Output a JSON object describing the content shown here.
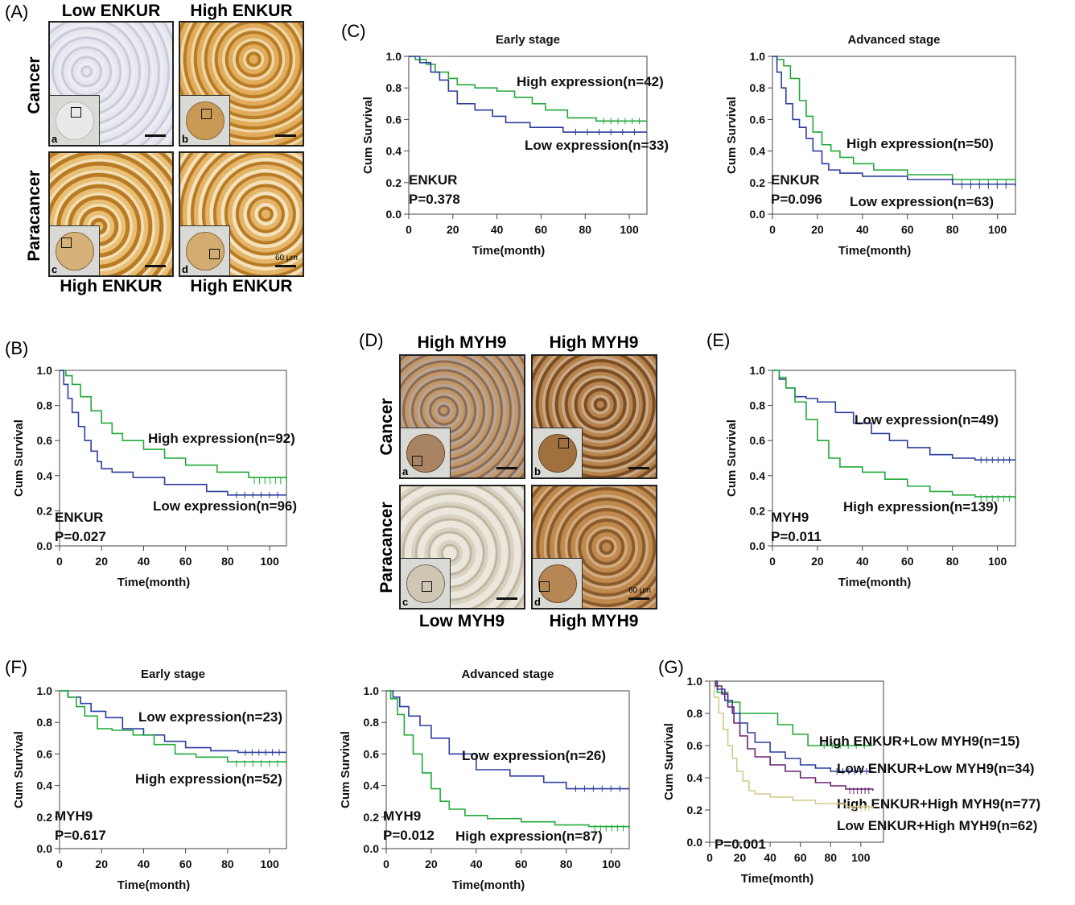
{
  "panel_labels": {
    "A": "(A)",
    "B": "(B)",
    "C": "(C)",
    "D": "(D)",
    "E": "(E)",
    "F": "(F)",
    "G": "(G)"
  },
  "panel_a": {
    "top_left_title": "Low ENKUR",
    "top_right_title": "High ENKUR",
    "bottom_left_title": "High ENKUR",
    "bottom_right_title": "High ENKUR",
    "row1_label": "Cancer",
    "row2_label": "Paracancer",
    "letters": [
      "a",
      "b",
      "c",
      "d"
    ],
    "scale": "60 μm",
    "colors": {
      "low_bg": "#d8d9e3",
      "high_bg": "#d9a04a",
      "stain": "#b87a22"
    }
  },
  "panel_d": {
    "top_left_title": "High MYH9",
    "top_right_title": "High MYH9",
    "bottom_left_title": "Low MYH9",
    "bottom_right_title": "High MYH9",
    "row1_label": "Cancer",
    "row2_label": "Paracancer",
    "letters": [
      "a",
      "b",
      "c",
      "d"
    ],
    "scale": "60 μm",
    "colors": {
      "high_bg": "#b07a45",
      "low_bg": "#d8d2c6",
      "stain": "#8a5a2a"
    }
  },
  "chart_data": [
    {
      "id": "C1",
      "type": "line",
      "title": "Early stage",
      "xlabel": "Time(month)",
      "ylabel": "Cum Survival",
      "xlim": [
        0,
        108
      ],
      "ylim": [
        0,
        1.0
      ],
      "xticks": [
        0,
        20,
        40,
        60,
        80,
        100
      ],
      "yticks": [
        0.0,
        0.2,
        0.4,
        0.6,
        0.8,
        1.0
      ],
      "annotations": [
        "ENKUR",
        "P=0.378"
      ],
      "series": [
        {
          "name": "High expression(n=42)",
          "color": "#22aa3a",
          "x": [
            0,
            3,
            8,
            12,
            18,
            22,
            30,
            40,
            48,
            56,
            62,
            72,
            85,
            108
          ],
          "y": [
            1.0,
            0.98,
            0.95,
            0.9,
            0.86,
            0.82,
            0.8,
            0.78,
            0.74,
            0.7,
            0.66,
            0.61,
            0.59,
            0.59
          ]
        },
        {
          "name": "Low expression(n=33)",
          "color": "#2c3e9f",
          "x": [
            0,
            5,
            10,
            14,
            18,
            22,
            30,
            38,
            44,
            55,
            70,
            108
          ],
          "y": [
            1.0,
            0.96,
            0.9,
            0.85,
            0.78,
            0.7,
            0.66,
            0.62,
            0.58,
            0.55,
            0.52,
            0.52
          ]
        }
      ]
    },
    {
      "id": "C2",
      "type": "line",
      "title": "Advanced stage",
      "xlabel": "Time(month)",
      "ylabel": "Cum Survival",
      "xlim": [
        0,
        108
      ],
      "ylim": [
        0,
        1.0
      ],
      "xticks": [
        0,
        20,
        40,
        60,
        80,
        100
      ],
      "yticks": [
        0.0,
        0.2,
        0.4,
        0.6,
        0.8,
        1.0
      ],
      "annotations": [
        "ENKUR",
        "P=0.096"
      ],
      "series": [
        {
          "name": "High expression(n=50)",
          "color": "#22aa3a",
          "x": [
            0,
            2,
            5,
            8,
            12,
            15,
            18,
            22,
            26,
            30,
            36,
            45,
            60,
            80,
            108
          ],
          "y": [
            1.0,
            0.98,
            0.94,
            0.86,
            0.72,
            0.62,
            0.52,
            0.44,
            0.4,
            0.36,
            0.32,
            0.28,
            0.25,
            0.22,
            0.2
          ]
        },
        {
          "name": "Low expression(n=63)",
          "color": "#2c3e9f",
          "x": [
            0,
            2,
            4,
            6,
            9,
            12,
            15,
            18,
            22,
            25,
            30,
            40,
            60,
            80,
            108
          ],
          "y": [
            1.0,
            0.9,
            0.8,
            0.7,
            0.6,
            0.55,
            0.48,
            0.4,
            0.32,
            0.28,
            0.26,
            0.24,
            0.22,
            0.19,
            0.18
          ]
        }
      ]
    },
    {
      "id": "B",
      "type": "line",
      "title": "",
      "xlabel": "Time(month)",
      "ylabel": "Cum Survival",
      "xlim": [
        0,
        108
      ],
      "ylim": [
        0,
        1.0
      ],
      "xticks": [
        0,
        20,
        40,
        60,
        80,
        100
      ],
      "yticks": [
        0.0,
        0.2,
        0.4,
        0.6,
        0.8,
        1.0
      ],
      "annotations": [
        "ENKUR",
        "P=0.027"
      ],
      "series": [
        {
          "name": "High expression(n=92)",
          "color": "#22aa3a",
          "x": [
            0,
            3,
            6,
            10,
            15,
            20,
            25,
            30,
            40,
            50,
            60,
            75,
            90,
            108
          ],
          "y": [
            1.0,
            0.97,
            0.92,
            0.85,
            0.77,
            0.7,
            0.64,
            0.6,
            0.55,
            0.5,
            0.46,
            0.42,
            0.39,
            0.37
          ]
        },
        {
          "name": "Low expression(n=96)",
          "color": "#2c3e9f",
          "x": [
            0,
            2,
            4,
            6,
            9,
            12,
            15,
            18,
            20,
            25,
            35,
            50,
            70,
            80,
            108
          ],
          "y": [
            1.0,
            0.92,
            0.84,
            0.76,
            0.68,
            0.6,
            0.54,
            0.48,
            0.44,
            0.42,
            0.39,
            0.35,
            0.31,
            0.29,
            0.29
          ]
        }
      ]
    },
    {
      "id": "E",
      "type": "line",
      "title": "",
      "xlabel": "Time(month)",
      "ylabel": "Cum Survival",
      "xlim": [
        0,
        108
      ],
      "ylim": [
        0,
        1.0
      ],
      "xticks": [
        0,
        20,
        40,
        60,
        80,
        100
      ],
      "yticks": [
        0.0,
        0.2,
        0.4,
        0.6,
        0.8,
        1.0
      ],
      "annotations": [
        "MYH9",
        "P=0.011"
      ],
      "series": [
        {
          "name": "Low expression(n=49)",
          "color": "#2c3e9f",
          "x": [
            0,
            3,
            6,
            10,
            15,
            20,
            28,
            36,
            44,
            52,
            60,
            70,
            80,
            90,
            108
          ],
          "y": [
            1.0,
            0.95,
            0.9,
            0.85,
            0.84,
            0.82,
            0.76,
            0.7,
            0.64,
            0.6,
            0.56,
            0.52,
            0.5,
            0.49,
            0.49
          ]
        },
        {
          "name": "High expression(n=139)",
          "color": "#22aa3a",
          "x": [
            0,
            3,
            6,
            10,
            15,
            20,
            25,
            30,
            40,
            50,
            60,
            70,
            80,
            90,
            108
          ],
          "y": [
            1.0,
            0.96,
            0.9,
            0.82,
            0.72,
            0.6,
            0.5,
            0.45,
            0.42,
            0.38,
            0.34,
            0.31,
            0.29,
            0.28,
            0.27
          ]
        }
      ]
    },
    {
      "id": "F1",
      "type": "line",
      "title": "Early stage",
      "xlabel": "Time(month)",
      "ylabel": "Cum Survival",
      "xlim": [
        0,
        108
      ],
      "ylim": [
        0,
        1.0
      ],
      "xticks": [
        0,
        20,
        40,
        60,
        80,
        100
      ],
      "yticks": [
        0.0,
        0.2,
        0.4,
        0.6,
        0.8,
        1.0
      ],
      "annotations": [
        "MYH9",
        "P=0.617"
      ],
      "series": [
        {
          "name": "Low expression(n=23)",
          "color": "#2c3e9f",
          "x": [
            0,
            4,
            10,
            15,
            22,
            30,
            40,
            50,
            60,
            72,
            85,
            108
          ],
          "y": [
            1.0,
            0.96,
            0.92,
            0.87,
            0.83,
            0.76,
            0.72,
            0.68,
            0.64,
            0.62,
            0.61,
            0.61
          ]
        },
        {
          "name": "High expression(n=52)",
          "color": "#22aa3a",
          "x": [
            0,
            4,
            8,
            12,
            18,
            25,
            35,
            45,
            55,
            65,
            80,
            108
          ],
          "y": [
            1.0,
            0.96,
            0.9,
            0.84,
            0.76,
            0.75,
            0.72,
            0.66,
            0.6,
            0.58,
            0.55,
            0.54
          ]
        }
      ]
    },
    {
      "id": "F2",
      "type": "line",
      "title": "Advanced stage",
      "xlabel": "Time(month)",
      "ylabel": "Cum Survival",
      "xlim": [
        0,
        108
      ],
      "ylim": [
        0,
        1.0
      ],
      "xticks": [
        0,
        20,
        40,
        60,
        80,
        100
      ],
      "yticks": [
        0.0,
        0.2,
        0.4,
        0.6,
        0.8,
        1.0
      ],
      "annotations": [
        "MYH9",
        "P=0.012"
      ],
      "series": [
        {
          "name": "Low expression(n=26)",
          "color": "#2c3e9f",
          "x": [
            0,
            3,
            6,
            10,
            15,
            20,
            28,
            40,
            55,
            70,
            80,
            108
          ],
          "y": [
            1.0,
            0.96,
            0.9,
            0.84,
            0.78,
            0.7,
            0.6,
            0.5,
            0.46,
            0.42,
            0.38,
            0.38
          ]
        },
        {
          "name": "High expression(n=87)",
          "color": "#22aa3a",
          "x": [
            0,
            2,
            5,
            8,
            12,
            16,
            20,
            24,
            28,
            35,
            45,
            60,
            75,
            90,
            108
          ],
          "y": [
            1.0,
            0.95,
            0.85,
            0.72,
            0.6,
            0.48,
            0.38,
            0.3,
            0.25,
            0.21,
            0.19,
            0.17,
            0.15,
            0.14,
            0.13
          ]
        }
      ]
    },
    {
      "id": "G",
      "type": "line",
      "title": "",
      "xlabel": "Time(month)",
      "ylabel": "Cum Survival",
      "xlim": [
        0,
        115
      ],
      "ylim": [
        0,
        1.0
      ],
      "xticks": [
        0,
        20,
        40,
        60,
        80,
        100
      ],
      "yticks": [
        0.0,
        0.2,
        0.4,
        0.6,
        0.8,
        1.0
      ],
      "annotations": [
        "P=0.001"
      ],
      "series": [
        {
          "name": "High ENKUR+Low MYH9(n=15)",
          "color": "#22aa3a",
          "x": [
            0,
            5,
            12,
            20,
            30,
            45,
            55,
            65,
            70,
            108
          ],
          "y": [
            1.0,
            0.93,
            0.87,
            0.8,
            0.8,
            0.73,
            0.67,
            0.6,
            0.6,
            0.6
          ]
        },
        {
          "name": "Low ENKUR+Low MYH9(n=34)",
          "color": "#2c3e9f",
          "x": [
            0,
            5,
            10,
            15,
            20,
            25,
            30,
            40,
            50,
            60,
            70,
            80,
            108
          ],
          "y": [
            1.0,
            0.95,
            0.88,
            0.8,
            0.74,
            0.68,
            0.62,
            0.56,
            0.52,
            0.48,
            0.46,
            0.44,
            0.44
          ]
        },
        {
          "name": "High ENKUR+High MYH9(n=77)",
          "color": "#6e1f74",
          "x": [
            0,
            4,
            8,
            12,
            16,
            20,
            25,
            30,
            40,
            50,
            60,
            70,
            80,
            90,
            108
          ],
          "y": [
            1.0,
            0.97,
            0.92,
            0.84,
            0.74,
            0.66,
            0.58,
            0.53,
            0.48,
            0.44,
            0.4,
            0.37,
            0.35,
            0.33,
            0.32
          ]
        },
        {
          "name": "Low ENKUR+High MYH9(n=62)",
          "color": "#d4c98a",
          "x": [
            0,
            3,
            6,
            9,
            12,
            15,
            18,
            22,
            26,
            30,
            40,
            55,
            70,
            90,
            108
          ],
          "y": [
            1.0,
            0.9,
            0.8,
            0.7,
            0.6,
            0.52,
            0.44,
            0.38,
            0.32,
            0.3,
            0.28,
            0.26,
            0.24,
            0.22,
            0.21
          ]
        }
      ]
    }
  ]
}
